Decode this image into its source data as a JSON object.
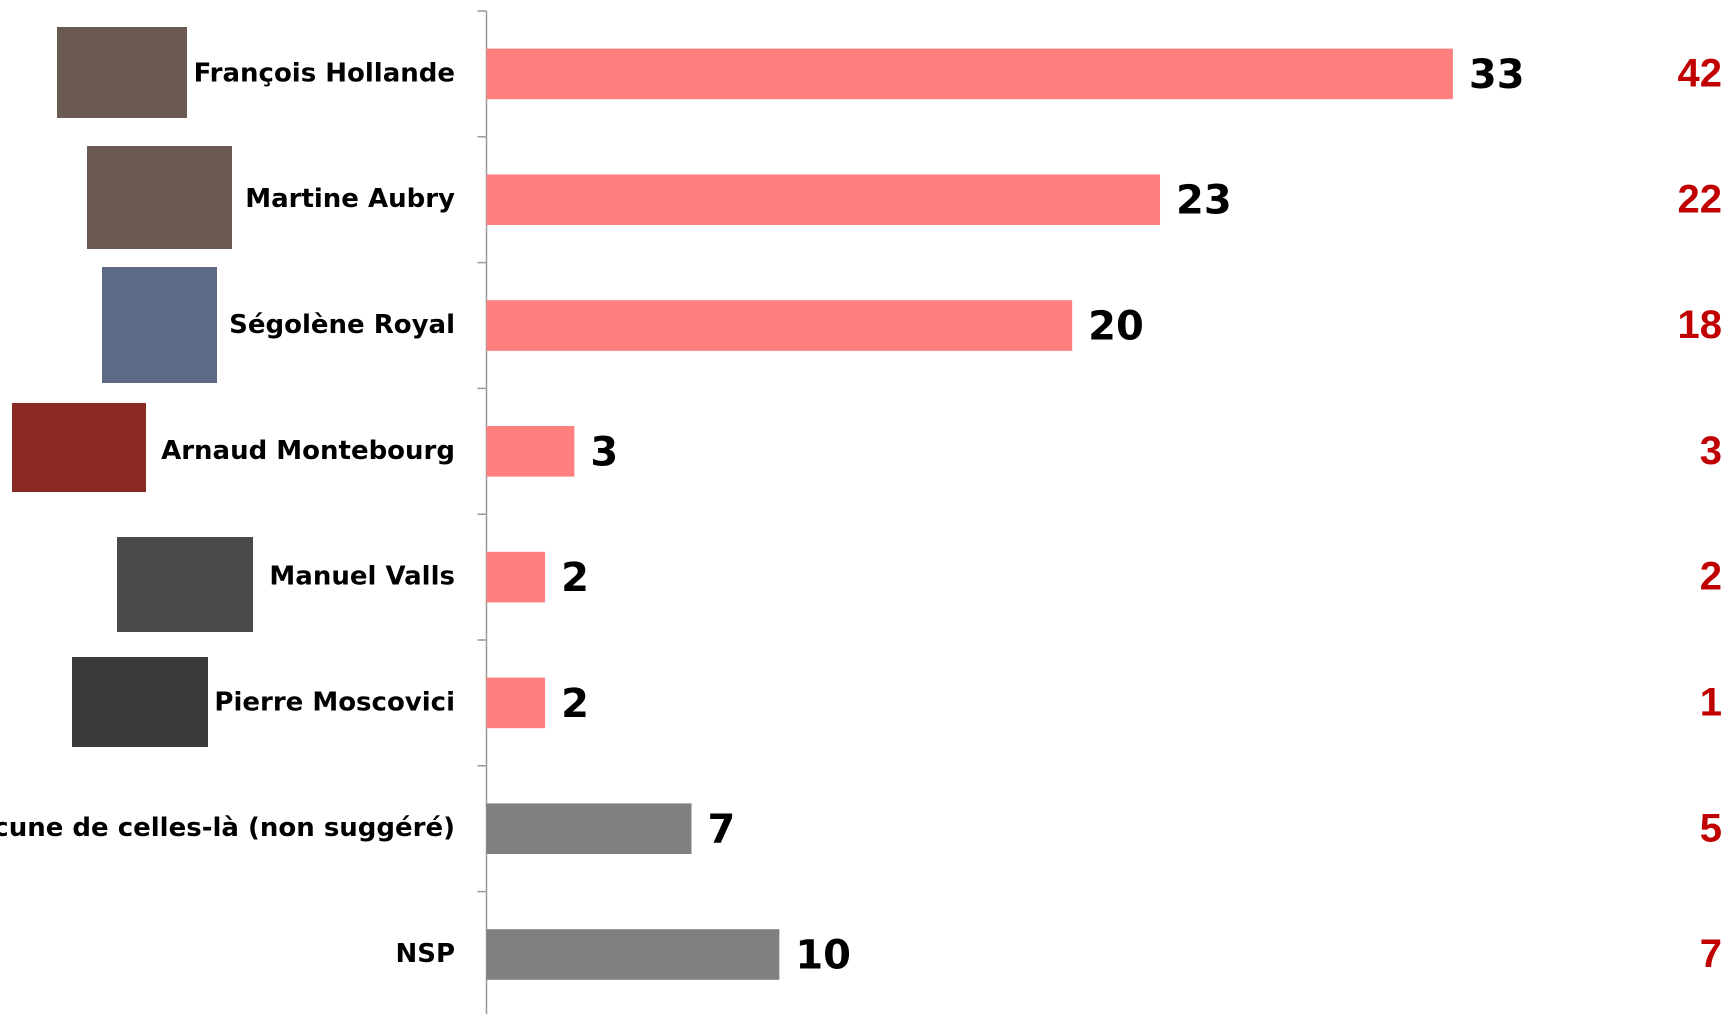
{
  "chart_data": {
    "type": "bar",
    "orientation": "horizontal",
    "categories": [
      "François Hollande",
      "Martine Aubry",
      "Ségolène Royal",
      "Arnaud Montebourg",
      "Manuel Valls",
      "Pierre Moscovici",
      "Aucune de celles-là (non suggéré)",
      "NSP"
    ],
    "values": [
      33,
      23,
      20,
      3,
      2,
      2,
      7,
      10
    ],
    "colors": [
      "#ff7f7f",
      "#ff7f7f",
      "#ff7f7f",
      "#ff7f7f",
      "#ff7f7f",
      "#ff7f7f",
      "#808080",
      "#808080"
    ],
    "comparison_values": [
      42,
      22,
      18,
      3,
      2,
      1,
      5,
      7
    ],
    "comparison_color": "#c00000",
    "xlim": [
      0,
      37
    ]
  }
}
